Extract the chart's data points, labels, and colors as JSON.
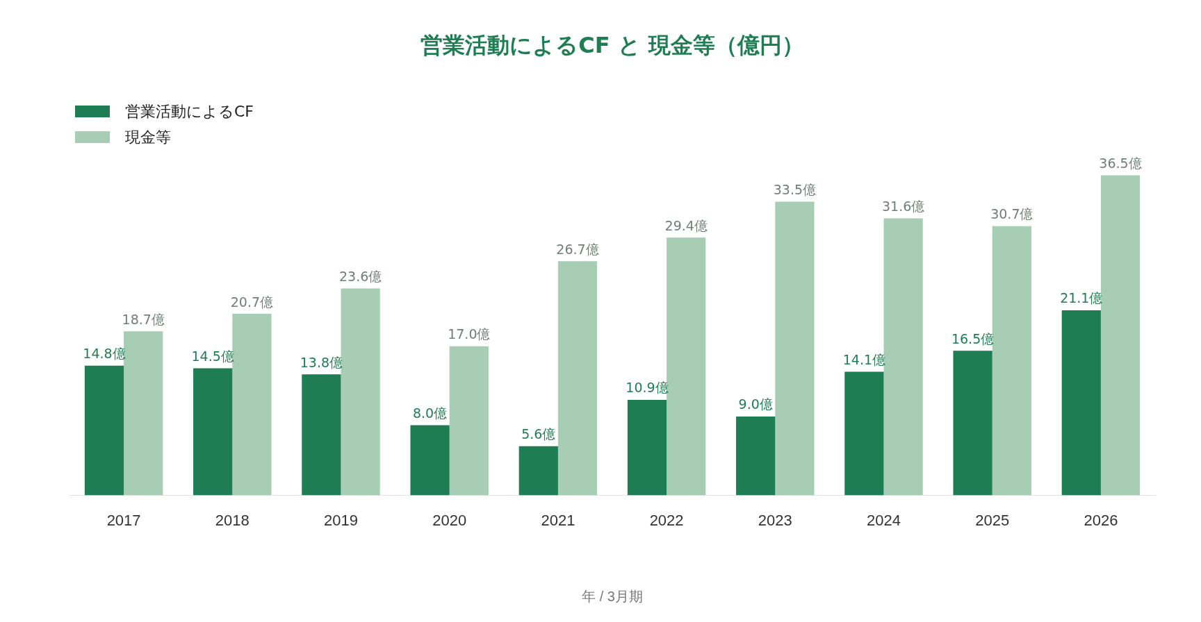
{
  "chart_data": {
    "type": "bar",
    "title": "営業活動によるCF と 現金等（億円）",
    "xlabel": "年 / 3月期",
    "categories": [
      "2017",
      "2018",
      "2019",
      "2020",
      "2021",
      "2022",
      "2023",
      "2024",
      "2025",
      "2026"
    ],
    "series": [
      {
        "name": "営業活動によるCF",
        "color": "#1e7d52",
        "values": [
          14.8,
          14.5,
          13.8,
          8.0,
          5.6,
          10.9,
          9.0,
          14.1,
          16.5,
          21.1
        ],
        "value_labels": [
          "14.8億",
          "14.5億",
          "13.8億",
          "8.0億",
          "5.6億",
          "10.9億",
          "9.0億",
          "14.1億",
          "16.5億",
          "21.1億"
        ]
      },
      {
        "name": "現金等",
        "color": "#a8cdb5",
        "values": [
          18.7,
          20.7,
          23.6,
          17.0,
          26.7,
          29.4,
          33.5,
          31.6,
          30.7,
          36.5
        ],
        "value_labels": [
          "18.7億",
          "20.7億",
          "23.6億",
          "17.0億",
          "26.7億",
          "29.4億",
          "33.5億",
          "31.6億",
          "30.7億",
          "36.5億"
        ]
      }
    ],
    "legend": "top left",
    "grid": false
  }
}
